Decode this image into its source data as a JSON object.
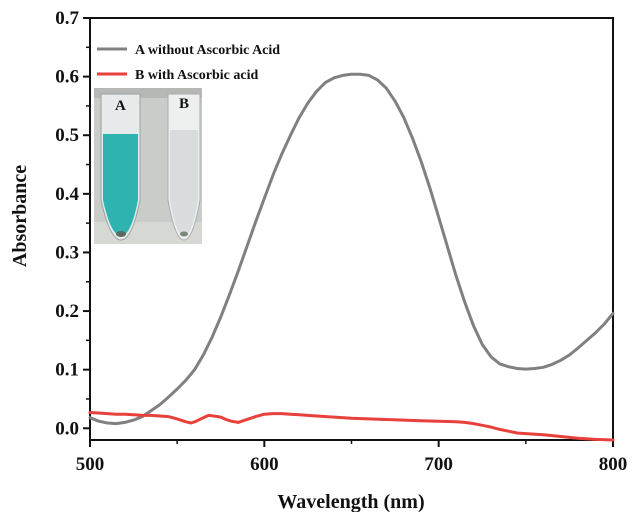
{
  "chart_data": {
    "type": "line",
    "title": "",
    "xlabel": "Wavelength (nm)",
    "ylabel": "Absorbance",
    "xlim": [
      500,
      800
    ],
    "ylim": [
      -0.02,
      0.7
    ],
    "xticks": [
      500,
      600,
      700,
      800
    ],
    "xtick_labels": [
      "500",
      "600",
      "700",
      "800"
    ],
    "yticks": [
      0.0,
      0.1,
      0.2,
      0.3,
      0.4,
      0.5,
      0.6,
      0.7
    ],
    "ytick_labels": [
      "0.0",
      "0.1",
      "0.2",
      "0.3",
      "0.4",
      "0.5",
      "0.6",
      "0.7"
    ],
    "grid": false,
    "legend_position": "top-left",
    "series": [
      {
        "name": "A without Ascorbic Acid",
        "color": "#808080",
        "x": [
          500,
          505,
          510,
          515,
          520,
          525,
          530,
          535,
          540,
          545,
          550,
          555,
          560,
          565,
          570,
          575,
          580,
          585,
          590,
          595,
          600,
          605,
          610,
          615,
          620,
          625,
          630,
          635,
          640,
          645,
          650,
          655,
          660,
          665,
          670,
          675,
          680,
          685,
          690,
          695,
          700,
          705,
          710,
          715,
          720,
          725,
          730,
          735,
          740,
          745,
          750,
          755,
          760,
          765,
          770,
          775,
          780,
          785,
          790,
          795,
          800
        ],
        "y": [
          0.018,
          0.012,
          0.009,
          0.008,
          0.01,
          0.014,
          0.02,
          0.03,
          0.04,
          0.053,
          0.067,
          0.082,
          0.1,
          0.125,
          0.155,
          0.19,
          0.228,
          0.268,
          0.31,
          0.352,
          0.392,
          0.432,
          0.468,
          0.5,
          0.53,
          0.555,
          0.575,
          0.59,
          0.598,
          0.602,
          0.604,
          0.604,
          0.602,
          0.594,
          0.58,
          0.558,
          0.53,
          0.495,
          0.455,
          0.41,
          0.36,
          0.31,
          0.26,
          0.215,
          0.175,
          0.143,
          0.122,
          0.11,
          0.105,
          0.102,
          0.101,
          0.102,
          0.104,
          0.109,
          0.116,
          0.125,
          0.137,
          0.15,
          0.163,
          0.178,
          0.196
        ]
      },
      {
        "name": "B with Ascorbic acid",
        "color": "#e8403a",
        "x": [
          500,
          505,
          510,
          515,
          520,
          525,
          530,
          535,
          540,
          545,
          550,
          555,
          558,
          561,
          565,
          568,
          571,
          575,
          578,
          581,
          585,
          588,
          591,
          595,
          600,
          605,
          610,
          615,
          620,
          625,
          630,
          640,
          650,
          660,
          670,
          680,
          690,
          700,
          710,
          715,
          720,
          725,
          730,
          735,
          740,
          745,
          750,
          760,
          770,
          780,
          790,
          800
        ],
        "y": [
          0.027,
          0.026,
          0.025,
          0.024,
          0.024,
          0.023,
          0.022,
          0.022,
          0.021,
          0.02,
          0.016,
          0.011,
          0.009,
          0.012,
          0.018,
          0.022,
          0.021,
          0.019,
          0.015,
          0.012,
          0.01,
          0.013,
          0.016,
          0.02,
          0.024,
          0.025,
          0.025,
          0.024,
          0.023,
          0.022,
          0.021,
          0.019,
          0.017,
          0.016,
          0.015,
          0.014,
          0.013,
          0.012,
          0.011,
          0.01,
          0.008,
          0.005,
          0.002,
          -0.002,
          -0.005,
          -0.008,
          -0.009,
          -0.011,
          -0.014,
          -0.017,
          -0.019,
          -0.02
        ]
      }
    ]
  },
  "inset": {
    "tube_labels": [
      "A",
      "B"
    ],
    "colors": {
      "tube_a_liquid": "#2fb3b0",
      "tube_b_liquid": "#d8dcdc",
      "backdrop": "#c9ccc9"
    }
  }
}
